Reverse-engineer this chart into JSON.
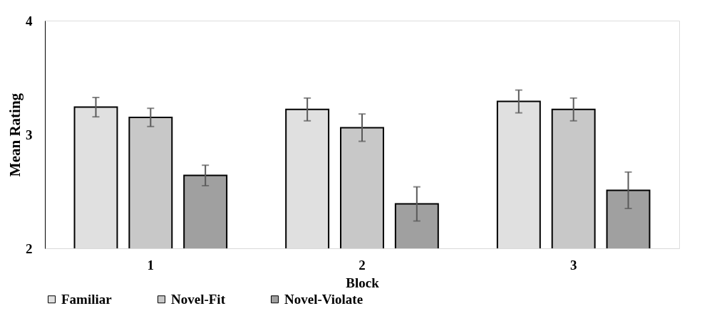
{
  "chart_data": {
    "type": "bar",
    "xlabel": "Block",
    "ylabel": "Mean Rating",
    "categories": [
      "1",
      "2",
      "3"
    ],
    "series": [
      {
        "name": "Familiar",
        "color": "#e0e0e0",
        "values": [
          3.24,
          3.22,
          3.29
        ],
        "errors": [
          0.085,
          0.1,
          0.1
        ]
      },
      {
        "name": "Novel-Fit",
        "color": "#c8c8c8",
        "values": [
          3.15,
          3.06,
          3.22
        ],
        "errors": [
          0.08,
          0.12,
          0.1
        ]
      },
      {
        "name": "Novel-Violate",
        "color": "#a0a0a0",
        "values": [
          2.64,
          2.39,
          2.51
        ],
        "errors": [
          0.09,
          0.15,
          0.16
        ]
      }
    ],
    "ylim": [
      2,
      4
    ],
    "yticks": [
      2,
      3,
      4
    ],
    "grid": false,
    "legend": "bottom"
  }
}
